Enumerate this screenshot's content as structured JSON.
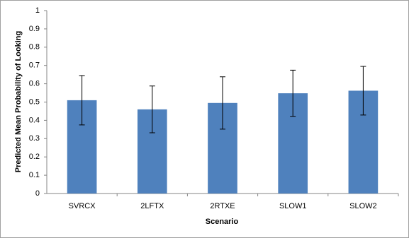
{
  "chart_data": {
    "type": "bar",
    "categories": [
      "SVRCX",
      "2LFTX",
      "2RTXE",
      "SLOW1",
      "SLOW2"
    ],
    "values": [
      0.51,
      0.46,
      0.495,
      0.548,
      0.562
    ],
    "errors": [
      0.135,
      0.128,
      0.143,
      0.126,
      0.133
    ],
    "color": "#4f81bd",
    "xlabel": "Scenario",
    "ylabel": "Predicted Mean Probability of Looking",
    "ylim": [
      0,
      1
    ],
    "yticks": [
      0,
      0.1,
      0.2,
      0.3,
      0.4,
      0.5,
      0.6,
      0.7,
      0.8,
      0.9,
      1
    ],
    "grid": false
  }
}
